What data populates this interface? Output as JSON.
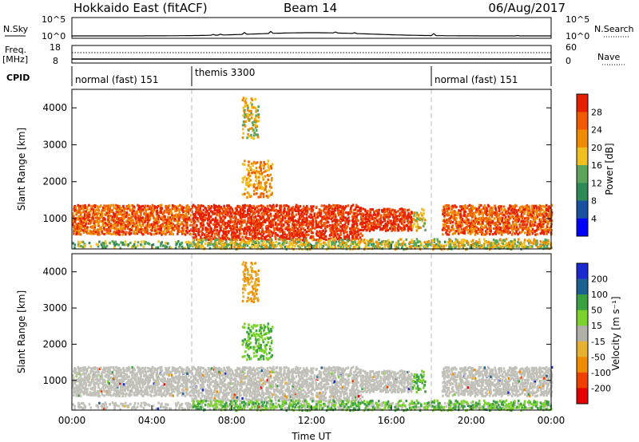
{
  "header": {
    "station": "Hokkaido East (fitACF)",
    "beam": "Beam 14",
    "date": "06/Aug/2017"
  },
  "noise_panel": {
    "left_label": "N.Sky",
    "right_label": "N.Search",
    "tick_top": "10^5",
    "tick_bottom": "10^0"
  },
  "freq_panel": {
    "left_label_1": "Freq.",
    "left_label_2": "[MHz]",
    "left_tick_top": "18",
    "left_tick_bottom": "8",
    "right_label": "Nave",
    "right_tick_top": "60",
    "right_tick_bottom": "0"
  },
  "cpid_panel": {
    "label": "CPID",
    "modes": [
      {
        "name": "normal (fast) 151",
        "start_hour": 0,
        "end_hour": 6
      },
      {
        "name": "themis 3300",
        "start_hour": 6,
        "end_hour": 18
      },
      {
        "name": "normal (fast) 151",
        "start_hour": 18,
        "end_hour": 24
      }
    ]
  },
  "colors": {
    "power": [
      "#0000ff",
      "#1a50a0",
      "#2e8b57",
      "#5aa55a",
      "#f0c020",
      "#f08c00",
      "#f05a00",
      "#e62000"
    ],
    "velocity": [
      "#e60000",
      "#f04000",
      "#f08c00",
      "#e6b030",
      "#c0c0b8",
      "#b0b0a8",
      "#7ad22a",
      "#3aa040",
      "#1a6090",
      "#1a2ad0"
    ],
    "ground_scatter": "#c0c0b8"
  },
  "power_panel": {
    "ylabel": "Slant Range [km]",
    "yticks": [
      "1000",
      "2000",
      "3000",
      "4000"
    ],
    "colorbar_label": "Power [dB]",
    "colorbar_ticks": [
      "4",
      "8",
      "12",
      "16",
      "20",
      "24",
      "28"
    ]
  },
  "velocity_panel": {
    "ylabel": "Slant Range [km]",
    "yticks": [
      "1000",
      "2000",
      "3000",
      "4000"
    ],
    "colorbar_label": "Velocity [m s⁻¹]",
    "colorbar_ticks": [
      "200",
      "100",
      "50",
      "15",
      "-15",
      "-50",
      "-100",
      "-200"
    ]
  },
  "xaxis": {
    "label": "Time UT",
    "ticks": [
      "00:00",
      "04:00",
      "08:00",
      "12:00",
      "16:00",
      "20:00",
      "00:00"
    ]
  },
  "chart_data": {
    "type": "heatmap",
    "title": "Hokkaido East (fitACF)  Beam 14  06/Aug/2017",
    "xlabel": "Time UT",
    "ylabel": "Slant Range [km]",
    "xlim_hours": [
      0,
      24
    ],
    "ylim_km": [
      180,
      4500
    ],
    "scatter_regions": [
      {
        "name": "near band",
        "t0": 0.0,
        "t1": 24.0,
        "r0": 230,
        "r1": 420,
        "power_level": 3,
        "velocity": "ground"
      },
      {
        "name": "main band morning",
        "t0": 0.0,
        "t1": 6.0,
        "r0": 600,
        "r1": 1400,
        "power_level": 6,
        "velocity": "ground"
      },
      {
        "name": "main band midday",
        "t0": 6.0,
        "t1": 14.5,
        "r0": 450,
        "r1": 1400,
        "power_level": 7,
        "velocity": "ground"
      },
      {
        "name": "main band afternoon",
        "t0": 14.5,
        "t1": 17.0,
        "r0": 700,
        "r1": 1300,
        "power_level": 7,
        "velocity": "ground"
      },
      {
        "name": "main band evening",
        "t0": 18.5,
        "t1": 24.0,
        "r0": 600,
        "r1": 1400,
        "power_level": 6,
        "velocity": "ground"
      },
      {
        "name": "ionospheric band",
        "t0": 8.5,
        "t1": 10.0,
        "r0": 1600,
        "r1": 2600,
        "power_level": 5,
        "velocity": "positive"
      },
      {
        "name": "upper patch",
        "t0": 8.5,
        "t1": 9.3,
        "r0": 3200,
        "r1": 4300,
        "power_level": 4,
        "velocity": "negative"
      },
      {
        "name": "late patch",
        "t0": 17.0,
        "t1": 17.7,
        "r0": 700,
        "r1": 1300,
        "power_level": 4,
        "velocity": "positive"
      },
      {
        "name": "low-range green band",
        "t0": 6.0,
        "t1": 24.0,
        "r0": 200,
        "r1": 480,
        "power_level": 4,
        "velocity": "positive"
      }
    ],
    "cpid": [
      {
        "mode": "normal (fast) 151",
        "start_hour": 0,
        "end_hour": 6
      },
      {
        "mode": "themis 3300",
        "start_hour": 6,
        "end_hour": 18
      },
      {
        "mode": "normal (fast) 151",
        "start_hour": 18,
        "end_hour": 24
      }
    ],
    "power_colorbar_db": [
      4,
      8,
      12,
      16,
      20,
      24,
      28
    ],
    "velocity_colorbar_ms": [
      -200,
      -100,
      -50,
      -15,
      15,
      50,
      100,
      200
    ],
    "grid": false,
    "legend": "right colorbars"
  }
}
